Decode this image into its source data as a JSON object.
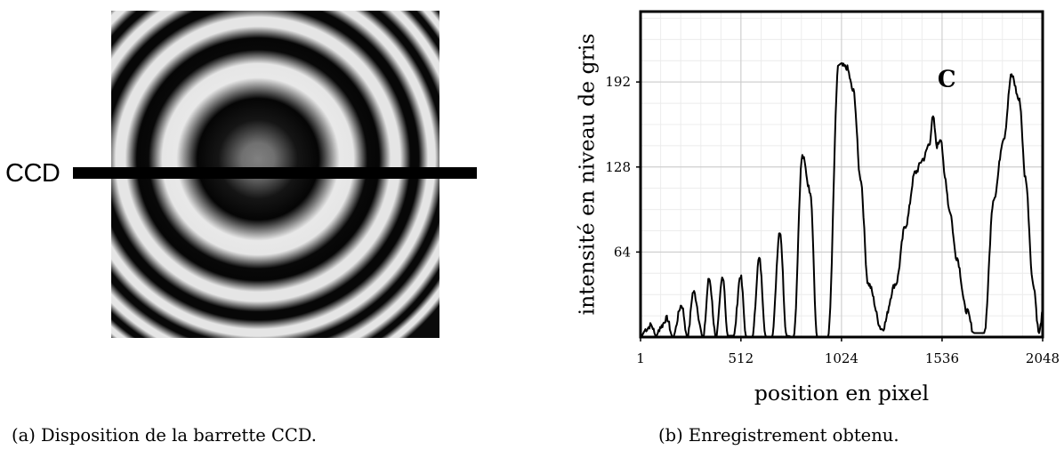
{
  "panel_a": {
    "ccd_label": "CCD",
    "caption": "(a) Disposition de la barrette CCD."
  },
  "panel_b": {
    "caption": "(b) Enregistrement obtenu."
  },
  "chart_data": {
    "type": "line",
    "title": "",
    "xlabel": "position en pixel",
    "ylabel": "intensité en niveau de gris",
    "xlim": [
      1,
      2048
    ],
    "ylim": [
      0,
      245
    ],
    "xticks": [
      1,
      512,
      1024,
      1536,
      2048
    ],
    "xtick_labels": [
      "1",
      "512",
      "1024",
      "1536",
      "2048"
    ],
    "yticks": [
      64,
      128,
      192
    ],
    "ytick_labels": [
      "64",
      "128",
      "192"
    ],
    "grid": true,
    "annotation": {
      "text": "C",
      "x": 1560,
      "y": 195
    },
    "series": [
      {
        "x": [
          1,
          30,
          55,
          80,
          105,
          135,
          165,
          210,
          240,
          270,
          320,
          350,
          385,
          420,
          445,
          475,
          510,
          540,
          570,
          605,
          640,
          670,
          710,
          745,
          780,
          825,
          865,
          900,
          925,
          955,
          1010,
          1050,
          1085,
          1120,
          1160,
          1230,
          1300,
          1350,
          1400,
          1440,
          1470,
          1490,
          1510,
          1530,
          1550,
          1575,
          1610,
          1660,
          1700,
          1750,
          1800,
          1850,
          1890,
          1930,
          1960,
          2000,
          2030,
          2048
        ],
        "y": [
          0,
          6,
          9,
          1,
          8,
          14,
          0,
          24,
          0,
          34,
          0,
          44,
          0,
          46,
          1,
          1,
          46,
          0,
          0,
          59,
          0,
          0,
          80,
          1,
          0,
          136,
          110,
          0,
          0,
          0,
          205,
          203,
          185,
          120,
          40,
          6,
          40,
          84,
          124,
          134,
          145,
          165,
          144,
          150,
          120,
          95,
          60,
          20,
          3,
          3,
          105,
          150,
          197,
          178,
          120,
          40,
          3,
          18
        ]
      }
    ]
  }
}
